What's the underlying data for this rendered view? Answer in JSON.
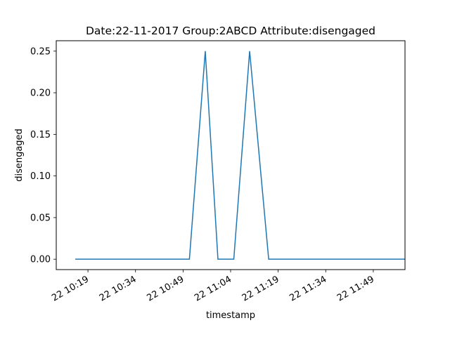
{
  "chart_data": {
    "type": "line",
    "title": "Date:22-11-2017  Group:2ABCD Attribute:disengaged",
    "xlabel": "timestamp",
    "ylabel": "disengaged",
    "x_tick_labels": [
      "22 10:19",
      "22 10:34",
      "22 10:49",
      "22 11:04",
      "22 11:19",
      "22 11:34",
      "22 11:49"
    ],
    "y_tick_labels": [
      "0.00",
      "0.05",
      "0.10",
      "0.15",
      "0.20",
      "0.25"
    ],
    "y_ticks": [
      0.0,
      0.05,
      0.1,
      0.15,
      0.2,
      0.25
    ],
    "ylim": [
      -0.0125,
      0.2625
    ],
    "xlim": [
      "10:09",
      "11:59"
    ],
    "grid": false,
    "series": [
      {
        "color": "#1f77b4",
        "x": [
          "10:15",
          "10:51",
          "10:56",
          "11:00",
          "11:05",
          "11:10",
          "11:16",
          "11:59"
        ],
        "y": [
          0.0,
          0.0,
          0.25,
          0.0,
          0.0,
          0.25,
          0.0,
          0.0
        ]
      }
    ]
  }
}
